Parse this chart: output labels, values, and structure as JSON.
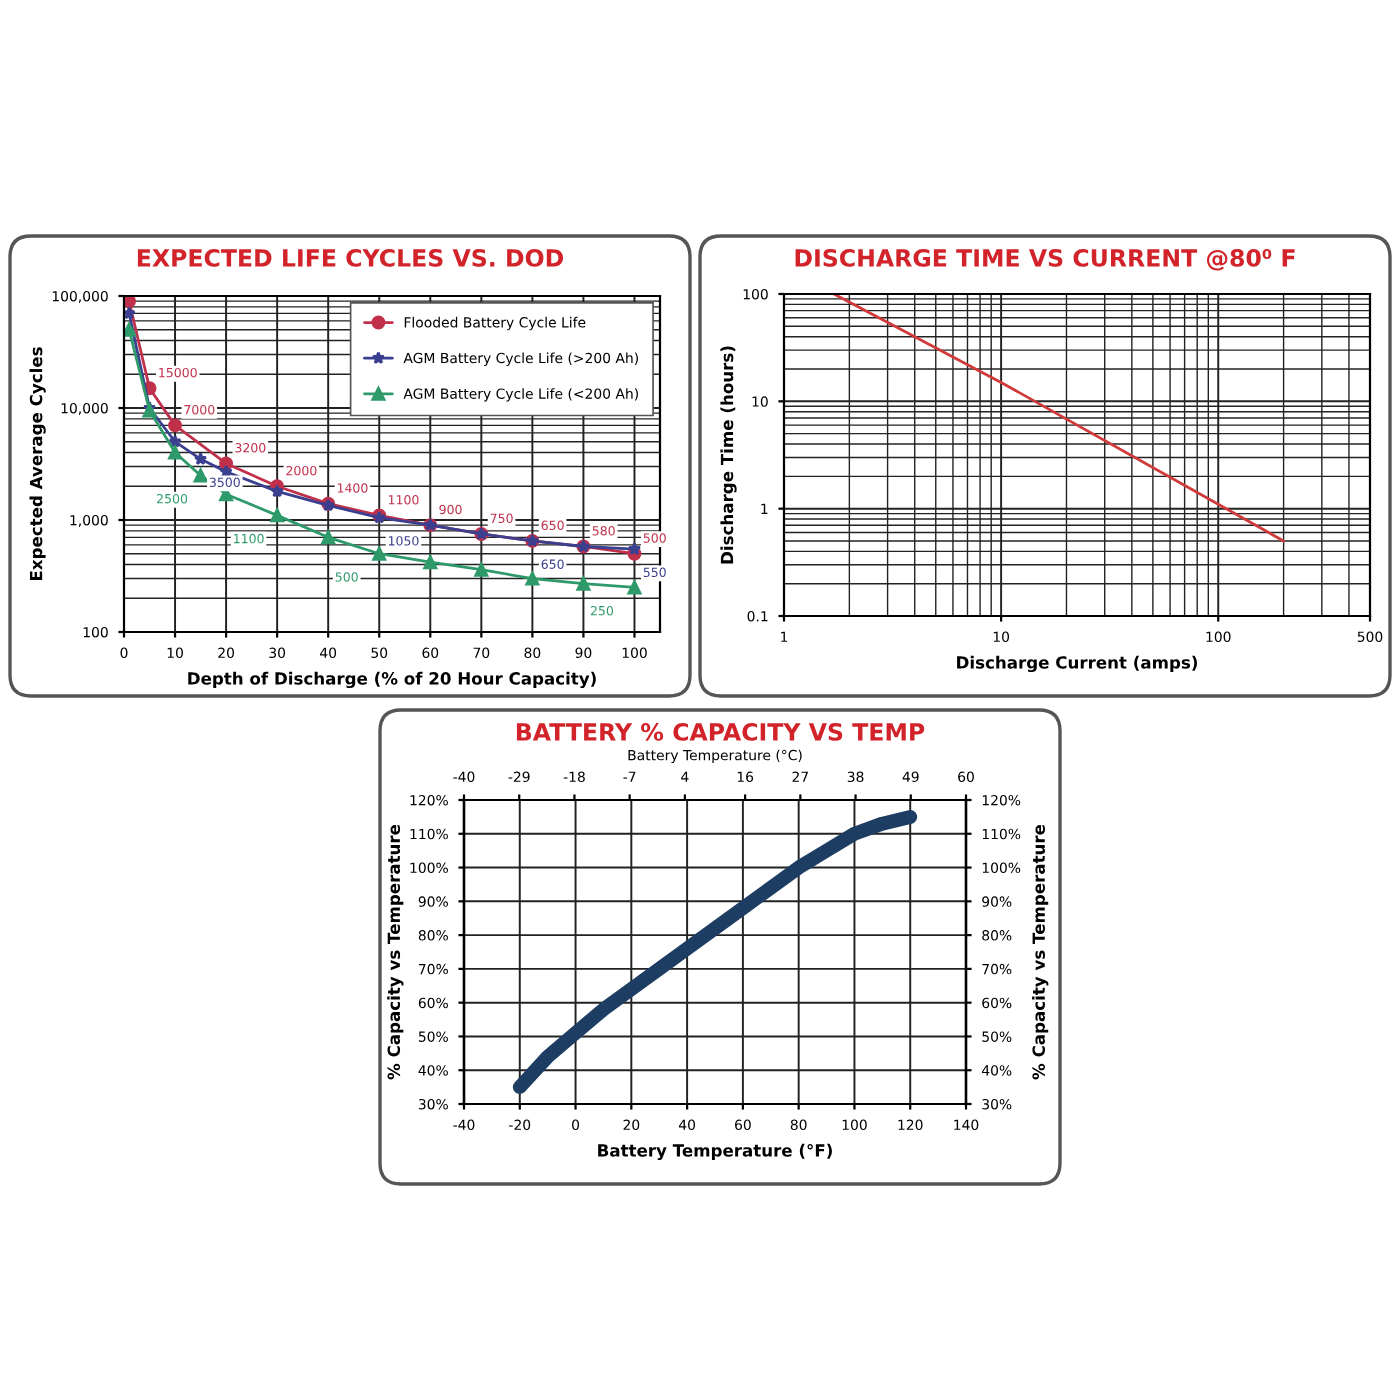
{
  "chart_data": [
    {
      "type": "line",
      "title": "EXPECTED LIFE CYCLES VS. DOD",
      "xlabel": "Depth of Discharge (% of 20 Hour Capacity)",
      "ylabel": "Expected Average Cycles",
      "log": "y",
      "xlim": [
        0,
        105
      ],
      "xticks": [
        0,
        10,
        20,
        30,
        40,
        50,
        60,
        70,
        80,
        90,
        100
      ],
      "ylim": [
        100,
        100000
      ],
      "yticks": [
        {
          "value": 100,
          "label": "100"
        },
        {
          "value": 1000,
          "label": "1,000"
        },
        {
          "value": 10000,
          "label": "10,000"
        },
        {
          "value": 100000,
          "label": "100,000"
        }
      ],
      "grid": true,
      "legend": "top right",
      "series": [
        {
          "name": "Flooded Battery Cycle Life",
          "color": "#c0304a",
          "marker": "circle",
          "x": [
            1,
            5,
            10,
            20,
            30,
            40,
            50,
            60,
            70,
            80,
            90,
            100
          ],
          "values": [
            90000,
            15000,
            7000,
            3200,
            2000,
            1400,
            1100,
            900,
            750,
            650,
            580,
            500
          ],
          "value_labels": [
            null,
            "15000",
            "7000",
            "3200",
            "2000",
            "1400",
            "1100",
            "900",
            "750",
            "650",
            "580",
            "500"
          ]
        },
        {
          "name": "AGM Battery Cycle Life (>200 Ah)",
          "color": "#3a3f8f",
          "marker": "star",
          "x": [
            1,
            5,
            10,
            15,
            20,
            30,
            40,
            50,
            60,
            70,
            80,
            90,
            100
          ],
          "values": [
            70000,
            10000,
            5000,
            3500,
            2700,
            1800,
            1350,
            1050,
            900,
            750,
            650,
            580,
            550
          ],
          "value_labels": [
            null,
            null,
            null,
            "3500",
            null,
            null,
            null,
            "1050",
            null,
            null,
            "650",
            null,
            "550"
          ]
        },
        {
          "name": "AGM Battery Cycle Life (<200 Ah)",
          "color": "#2e9a6a",
          "marker": "triangle",
          "x": [
            1,
            5,
            10,
            15,
            20,
            30,
            40,
            50,
            60,
            70,
            80,
            90,
            100
          ],
          "values": [
            50000,
            9500,
            4000,
            2500,
            1700,
            1100,
            700,
            500,
            420,
            360,
            300,
            270,
            250
          ],
          "value_labels": [
            null,
            null,
            null,
            "2500",
            null,
            "1100",
            null,
            "500",
            null,
            null,
            null,
            null,
            "250"
          ]
        }
      ]
    },
    {
      "type": "line",
      "title": "DISCHARGE TIME VS CURRENT @80⁰ F",
      "xlabel": "Discharge Current (amps)",
      "ylabel": "Discharge Time (hours)",
      "log": "xy",
      "xlim": [
        1,
        500
      ],
      "xticks": [
        1,
        10,
        100,
        500
      ],
      "ylim": [
        0.1,
        100
      ],
      "yticks": [
        0.1,
        1,
        10,
        100
      ],
      "grid": true,
      "series": [
        {
          "color": "#d03a3a",
          "marker": "none",
          "x": [
            1.7,
            10,
            100,
            200
          ],
          "values": [
            100,
            15,
            1.1,
            0.5
          ]
        }
      ]
    },
    {
      "type": "line",
      "title": "BATTERY % CAPACITY VS TEMP",
      "xlabel": "Battery Temperature (°F)",
      "x2label": "Battery Temperature (°C)",
      "ylabel": "% Capacity vs Temperature",
      "y2label": "% Capacity vs Temperature",
      "xlim": [
        -40,
        140
      ],
      "xticks": [
        -40,
        -20,
        0,
        20,
        40,
        60,
        80,
        100,
        120,
        140
      ],
      "x2lim": [
        -40,
        60
      ],
      "x2ticks": [
        -40,
        -29,
        -18,
        -7,
        4,
        16,
        27,
        38,
        49,
        60
      ],
      "ylim": [
        30,
        120
      ],
      "yticks": [
        {
          "value": 30,
          "label": "30%"
        },
        {
          "value": 40,
          "label": "40%"
        },
        {
          "value": 50,
          "label": "50%"
        },
        {
          "value": 60,
          "label": "60%"
        },
        {
          "value": 70,
          "label": "70%"
        },
        {
          "value": 80,
          "label": "80%"
        },
        {
          "value": 90,
          "label": "90%"
        },
        {
          "value": 100,
          "label": "100%"
        },
        {
          "value": 110,
          "label": "110%"
        },
        {
          "value": 120,
          "label": "120%"
        }
      ],
      "y2lim": [
        30,
        120
      ],
      "y2ticks": [
        {
          "value": 30,
          "label": "30%"
        },
        {
          "value": 40,
          "label": "40%"
        },
        {
          "value": 50,
          "label": "50%"
        },
        {
          "value": 60,
          "label": "60%"
        },
        {
          "value": 70,
          "label": "70%"
        },
        {
          "value": 80,
          "label": "80%"
        },
        {
          "value": 90,
          "label": "90%"
        },
        {
          "value": 100,
          "label": "100%"
        },
        {
          "value": 110,
          "label": "110%"
        },
        {
          "value": 120,
          "label": "120%"
        }
      ],
      "grid": true,
      "series": [
        {
          "color": "#1d3d63",
          "marker": "none",
          "x": [
            -20,
            -10,
            0,
            10,
            20,
            30,
            40,
            50,
            60,
            70,
            80,
            90,
            100,
            110,
            120
          ],
          "values": [
            35,
            44,
            51,
            58,
            64,
            70,
            76,
            82,
            88,
            94,
            100,
            105,
            110,
            113,
            115
          ]
        }
      ]
    }
  ]
}
